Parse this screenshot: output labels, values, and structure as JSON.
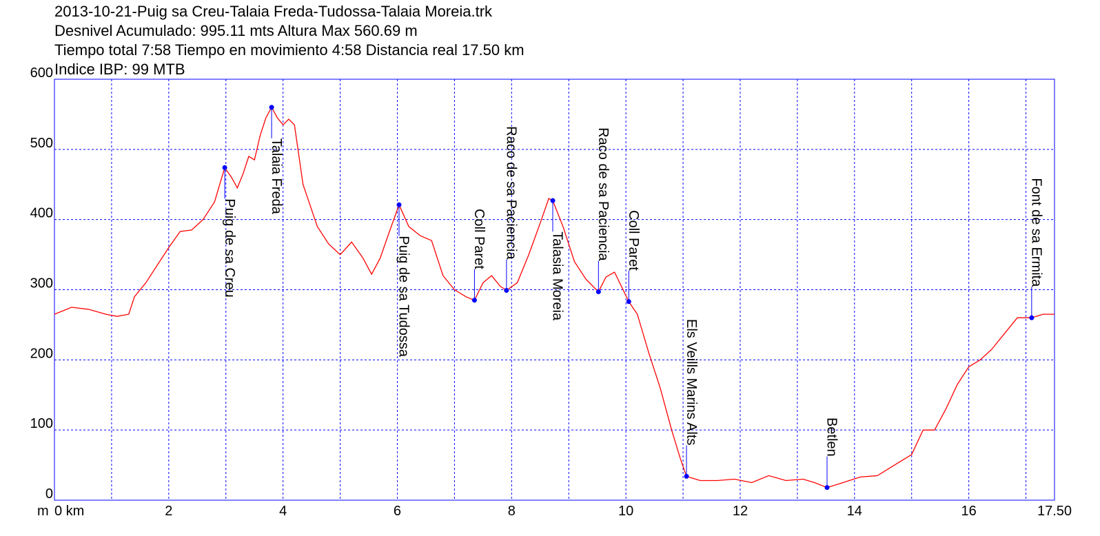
{
  "chart_data": {
    "type": "line",
    "title_lines": [
      "2013-10-21-Puig sa Creu-Talaia Freda-Tudossa-Talaia Moreia.trk",
      "Desnivel Acumulado: 995.11 mts  Altura Max 560.69 m",
      "Tiempo total 7:58 Tiempo en movimiento 4:58 Distancia real 17.50 km",
      "Indice IBP: 99 MTB"
    ],
    "y_unit": "m",
    "color": "#ff0000",
    "grid_color": "#0000ff",
    "xlim": [
      0,
      17.5
    ],
    "ylim": [
      0,
      600
    ],
    "xticks": [
      {
        "value": 0,
        "label": "0 km"
      },
      2,
      4,
      6,
      8,
      10,
      12,
      14,
      16,
      {
        "value": 17.5,
        "label": "17.50"
      }
    ],
    "xgrid": [
      1,
      2,
      3,
      4,
      5,
      6,
      7,
      8,
      9,
      10,
      11,
      12,
      13,
      14,
      15,
      16,
      17
    ],
    "yticks": [
      0,
      100,
      200,
      300,
      400,
      500,
      600
    ],
    "grid": true,
    "x": [
      0,
      0.3,
      0.6,
      0.9,
      1.1,
      1.3,
      1.4,
      1.6,
      1.8,
      2.0,
      2.2,
      2.4,
      2.6,
      2.8,
      2.98,
      3.1,
      3.2,
      3.3,
      3.4,
      3.5,
      3.6,
      3.7,
      3.8,
      3.9,
      4.0,
      4.1,
      4.2,
      4.35,
      4.6,
      4.8,
      5.0,
      5.2,
      5.4,
      5.55,
      5.7,
      5.85,
      6.03,
      6.2,
      6.4,
      6.6,
      6.8,
      7.0,
      7.2,
      7.35,
      7.5,
      7.65,
      7.8,
      7.91,
      8.1,
      8.3,
      8.5,
      8.65,
      8.72,
      8.9,
      9.1,
      9.3,
      9.52,
      9.65,
      9.8,
      9.95,
      10.05,
      10.2,
      10.4,
      10.6,
      10.8,
      10.95,
      11.06,
      11.3,
      11.6,
      11.9,
      12.2,
      12.5,
      12.8,
      13.1,
      13.3,
      13.52,
      13.8,
      14.1,
      14.4,
      14.7,
      15.0,
      15.2,
      15.4,
      15.6,
      15.8,
      16.0,
      16.2,
      16.4,
      16.6,
      16.85,
      17.1,
      17.3,
      17.5
    ],
    "values": [
      265,
      275,
      272,
      265,
      262,
      265,
      290,
      310,
      335,
      360,
      383,
      385,
      400,
      425,
      474,
      460,
      445,
      465,
      490,
      485,
      520,
      545,
      560,
      545,
      535,
      543,
      535,
      450,
      390,
      365,
      350,
      368,
      345,
      322,
      345,
      380,
      421,
      390,
      377,
      370,
      320,
      300,
      290,
      285,
      310,
      320,
      305,
      299,
      310,
      350,
      395,
      430,
      427,
      390,
      340,
      315,
      297,
      318,
      325,
      300,
      283,
      265,
      210,
      160,
      100,
      60,
      34,
      28,
      28,
      30,
      25,
      35,
      28,
      30,
      25,
      18,
      25,
      33,
      35,
      50,
      65,
      100,
      100,
      130,
      165,
      190,
      200,
      215,
      235,
      260,
      260,
      265,
      265
    ],
    "waypoints": [
      {
        "name": "Puig de sa Creu",
        "x": 2.98,
        "y": 474
      },
      {
        "name": "Talaia Freda",
        "x": 3.8,
        "y": 560
      },
      {
        "name": "Puig de sa Tudossa",
        "x": 6.03,
        "y": 421
      },
      {
        "name": "Coll Paret",
        "x": 7.35,
        "y": 285
      },
      {
        "name": "Raco de sa Paciencia",
        "x": 7.91,
        "y": 299
      },
      {
        "name": "Talasia Moreia",
        "x": 8.72,
        "y": 427
      },
      {
        "name": "Raco de sa Paciencia",
        "x": 9.52,
        "y": 297
      },
      {
        "name": "Coll Paret",
        "x": 10.05,
        "y": 283
      },
      {
        "name": "Els Veills Marins Alts",
        "x": 11.06,
        "y": 34
      },
      {
        "name": "Betlen",
        "x": 13.52,
        "y": 18
      },
      {
        "name": "Font de sa Ermita",
        "x": 17.1,
        "y": 260
      }
    ],
    "waypoint_color": "#0000ff"
  }
}
